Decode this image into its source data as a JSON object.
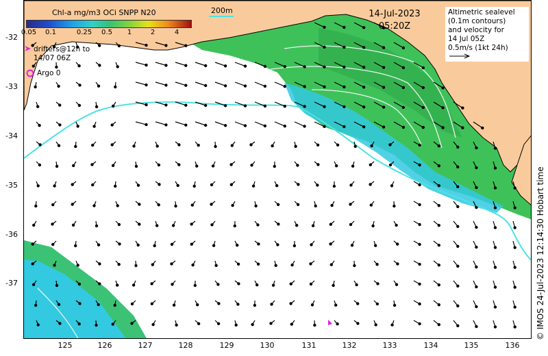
{
  "colorbar": {
    "title": "Chl-a mg/m3 OCi SNPP N20",
    "ticks": [
      "0.05",
      "0.1",
      "0.25",
      "0.5",
      "1",
      "2",
      "4"
    ]
  },
  "scale_label": "200m",
  "date": {
    "day": "14-Jul-2023",
    "time": "05:20Z"
  },
  "legend": {
    "line1": "Altimetric sealevel",
    "line2": "(0.1m contours)",
    "line3": "and velocity for",
    "line4": "14 Jul 05Z",
    "line5": "0.5m/s (1kt 24h)"
  },
  "drifters": {
    "line1": "drifters@12h to",
    "line2": "14/07 06Z"
  },
  "argo": "Argo 0",
  "copyright": "© IMOS 24-Jul-2023 12:14:30 Hobart time",
  "latitudes": [
    "-32",
    "-33",
    "-34",
    "-35",
    "-36",
    "-37"
  ],
  "longitudes": [
    "125",
    "126",
    "127",
    "128",
    "129",
    "130",
    "131",
    "132",
    "133",
    "134",
    "135",
    "136"
  ],
  "colors": {
    "land": "#f9cb9c",
    "ocean_empty": "#ffffff",
    "chl_green": "#3fc15a",
    "chl_cyan": "#33c9e0",
    "isobath": "#4de3e3",
    "argo": "#e020e0"
  }
}
